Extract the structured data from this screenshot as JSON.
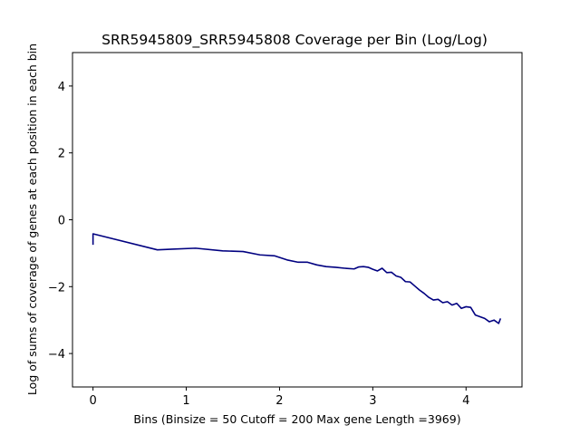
{
  "chart_data": {
    "type": "line",
    "title": "SRR5945809_SRR5945808 Coverage per Bin (Log/Log)",
    "xlabel": "Bins  (Binsize = 50 Cutoff = 200 Max gene Length =3969)",
    "ylabel": "Log of sums of coverage of genes at each position in each bin",
    "xlim": [
      -0.22,
      4.6
    ],
    "ylim": [
      -5,
      5
    ],
    "xticks": [
      0,
      1,
      2,
      3,
      4
    ],
    "yticks": [
      -4,
      -2,
      0,
      2,
      4
    ],
    "xtick_labels": [
      "0",
      "1",
      "2",
      "3",
      "4"
    ],
    "ytick_labels": [
      "−4",
      "−2",
      "0",
      "2",
      "4"
    ],
    "grid": false,
    "line_color": "#000080",
    "series": [
      {
        "x": [
          0,
          0,
          0.69,
          0.85,
          1.1,
          1.39,
          1.61,
          1.79,
          1.95,
          2.08,
          2.2,
          2.3,
          2.4,
          2.5,
          2.6,
          2.7,
          2.8,
          2.85,
          2.9,
          2.95,
          3.0,
          3.05,
          3.1,
          3.15,
          3.2,
          3.25,
          3.3,
          3.35,
          3.4,
          3.45,
          3.5,
          3.55,
          3.6,
          3.65,
          3.7,
          3.75,
          3.8,
          3.85,
          3.9,
          3.95,
          4.0,
          4.05,
          4.1,
          4.15,
          4.2,
          4.25,
          4.3,
          4.35,
          4.37
        ],
        "y": [
          -0.75,
          -0.42,
          -0.9,
          -0.88,
          -0.85,
          -0.93,
          -0.95,
          -1.05,
          -1.08,
          -1.2,
          -1.27,
          -1.27,
          -1.35,
          -1.4,
          -1.42,
          -1.45,
          -1.47,
          -1.41,
          -1.4,
          -1.42,
          -1.48,
          -1.53,
          -1.45,
          -1.58,
          -1.57,
          -1.68,
          -1.72,
          -1.85,
          -1.86,
          -1.98,
          -2.1,
          -2.2,
          -2.32,
          -2.4,
          -2.38,
          -2.48,
          -2.45,
          -2.55,
          -2.5,
          -2.65,
          -2.6,
          -2.62,
          -2.85,
          -2.9,
          -2.95,
          -3.05,
          -3.0,
          -3.1,
          -2.95
        ]
      }
    ]
  }
}
